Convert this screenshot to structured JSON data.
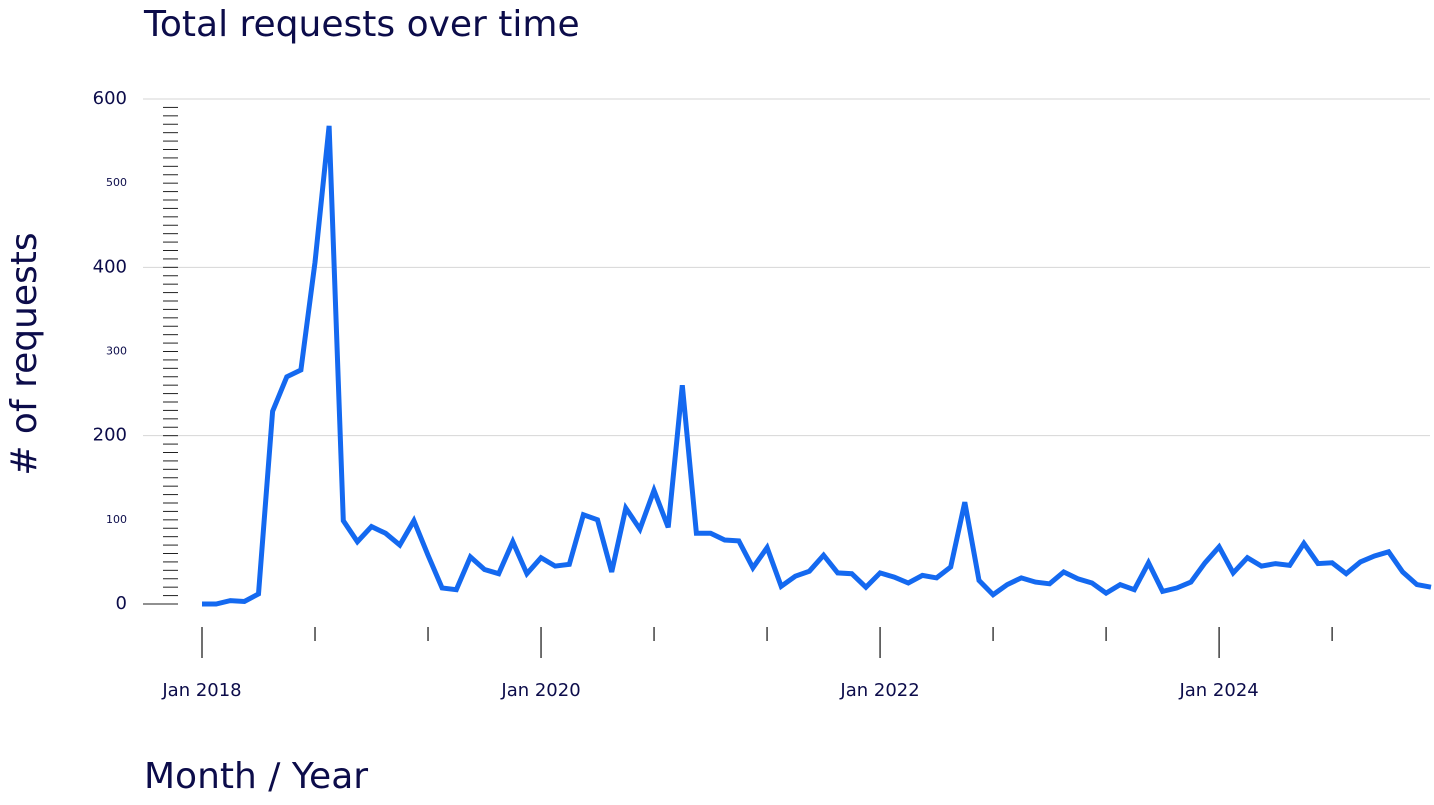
{
  "chart_data": {
    "type": "line",
    "title": "Total requests over time",
    "ylabel": "# of requests",
    "xlabel": "Month / Year",
    "x": [
      "2018-01",
      "2018-02",
      "2018-03",
      "2018-04",
      "2018-05",
      "2018-06",
      "2018-07",
      "2018-08",
      "2018-09",
      "2018-10",
      "2018-11",
      "2018-12",
      "2019-01",
      "2019-02",
      "2019-03",
      "2019-04",
      "2019-05",
      "2019-06",
      "2019-07",
      "2019-08",
      "2019-09",
      "2019-10",
      "2019-11",
      "2019-12",
      "2020-01",
      "2020-02",
      "2020-03",
      "2020-04",
      "2020-05",
      "2020-06",
      "2020-07",
      "2020-08",
      "2020-09",
      "2020-10",
      "2020-11",
      "2020-12",
      "2021-01",
      "2021-02",
      "2021-03",
      "2021-04",
      "2021-05",
      "2021-06",
      "2021-07",
      "2021-08",
      "2021-09",
      "2021-10",
      "2021-11",
      "2021-12",
      "2022-01",
      "2022-02",
      "2022-03",
      "2022-04",
      "2022-05",
      "2022-06",
      "2022-07",
      "2022-08",
      "2022-09",
      "2022-10",
      "2022-11",
      "2022-12",
      "2023-01",
      "2023-02",
      "2023-03",
      "2023-04",
      "2023-05",
      "2023-06",
      "2023-07",
      "2023-08",
      "2023-09",
      "2023-10",
      "2023-11",
      "2023-12",
      "2024-01",
      "2024-02",
      "2024-03",
      "2024-04",
      "2024-05",
      "2024-06",
      "2024-07",
      "2024-08",
      "2024-09",
      "2024-10",
      "2024-11",
      "2024-12",
      "2025-01",
      "2025-02",
      "2025-03",
      "2025-04"
    ],
    "series": [
      {
        "name": "Total requests",
        "color": "#1469f0",
        "values": [
          0,
          0,
          4,
          3,
          12,
          229,
          270,
          278,
          406,
          568,
          99,
          74,
          92,
          84,
          70,
          99,
          58,
          19,
          17,
          56,
          41,
          36,
          74,
          36,
          55,
          45,
          47,
          106,
          100,
          38,
          114,
          89,
          135,
          91,
          260,
          84,
          84,
          76,
          75,
          43,
          67,
          21,
          33,
          39,
          58,
          37,
          36,
          20,
          37,
          32,
          25,
          34,
          31,
          44,
          121,
          28,
          11,
          23,
          31,
          26,
          24,
          38,
          30,
          25,
          13,
          23,
          17,
          49,
          15,
          19,
          26,
          49,
          68,
          37,
          55,
          45,
          48,
          46,
          72,
          48,
          49,
          36,
          50,
          57,
          62,
          38,
          23,
          20
        ]
      }
    ],
    "xlim": [
      "2018-01",
      "2025-04"
    ],
    "xticks": [
      {
        "value": "2018-01",
        "label": "Jan 2018"
      },
      "2018-09",
      "2019-05",
      {
        "value": "2020-01",
        "label": "Jan 2020"
      },
      "2020-09",
      "2021-05",
      {
        "value": "2022-01",
        "label": "Jan 2022"
      },
      "2022-09",
      "2023-05",
      {
        "value": "2024-01",
        "label": "Jan 2024"
      },
      "2024-09"
    ],
    "ylim": [
      0,
      600
    ],
    "yticks": [
      0,
      200,
      400,
      600
    ],
    "yticks_small": [
      100,
      300,
      500
    ],
    "yticks_minor": [
      0,
      10,
      20,
      30,
      40,
      50,
      60,
      70,
      80,
      90,
      100,
      110,
      120,
      130,
      140,
      150,
      160,
      170,
      180,
      190,
      200,
      210,
      220,
      230,
      240,
      250,
      260,
      270,
      280,
      290,
      300,
      310,
      320,
      330,
      340,
      350,
      360,
      370,
      380,
      390,
      400,
      410,
      420,
      430,
      440,
      450,
      460,
      470,
      480,
      490,
      500,
      510,
      520,
      530,
      540,
      550,
      560,
      570,
      580,
      590
    ],
    "grid": true
  }
}
